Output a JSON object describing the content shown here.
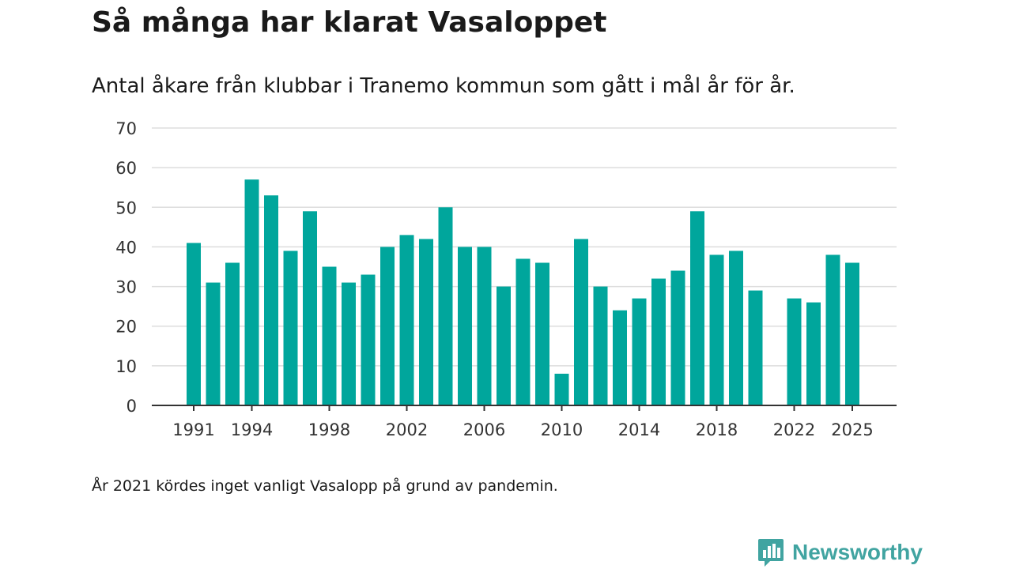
{
  "header": {
    "title": "Så många har klarat Vasaloppet",
    "subtitle": "Antal åkare från klubbar i Tranemo kommun som gått i mål år för år."
  },
  "footer": {
    "note": "År 2021 kördes inget vanligt Vasalopp på grund av pandemin.",
    "brand": "Newsworthy"
  },
  "colors": {
    "bar": "#00a69c",
    "grid": "#dddddd",
    "axis": "#333333",
    "brand": "#41a4a1"
  },
  "chart_data": {
    "type": "bar",
    "title": "Så många har klarat Vasaloppet",
    "xlabel": "",
    "ylabel": "",
    "ylim": [
      0,
      70
    ],
    "yticks": [
      0,
      10,
      20,
      30,
      40,
      50,
      60,
      70
    ],
    "xtick_labels": [
      "1991",
      "1994",
      "1998",
      "2002",
      "2006",
      "2010",
      "2014",
      "2018",
      "2022",
      "2025"
    ],
    "categories": [
      1991,
      1992,
      1993,
      1994,
      1995,
      1996,
      1997,
      1998,
      1999,
      2000,
      2001,
      2002,
      2003,
      2004,
      2005,
      2006,
      2007,
      2008,
      2009,
      2010,
      2011,
      2012,
      2013,
      2014,
      2015,
      2016,
      2017,
      2018,
      2019,
      2020,
      2021,
      2022,
      2023,
      2024,
      2025
    ],
    "values": [
      41,
      31,
      36,
      57,
      53,
      39,
      49,
      35,
      31,
      33,
      40,
      43,
      42,
      50,
      40,
      40,
      30,
      37,
      36,
      8,
      42,
      30,
      24,
      27,
      32,
      34,
      49,
      38,
      39,
      29,
      null,
      27,
      26,
      38,
      36
    ],
    "grid": true,
    "legend": "none"
  }
}
